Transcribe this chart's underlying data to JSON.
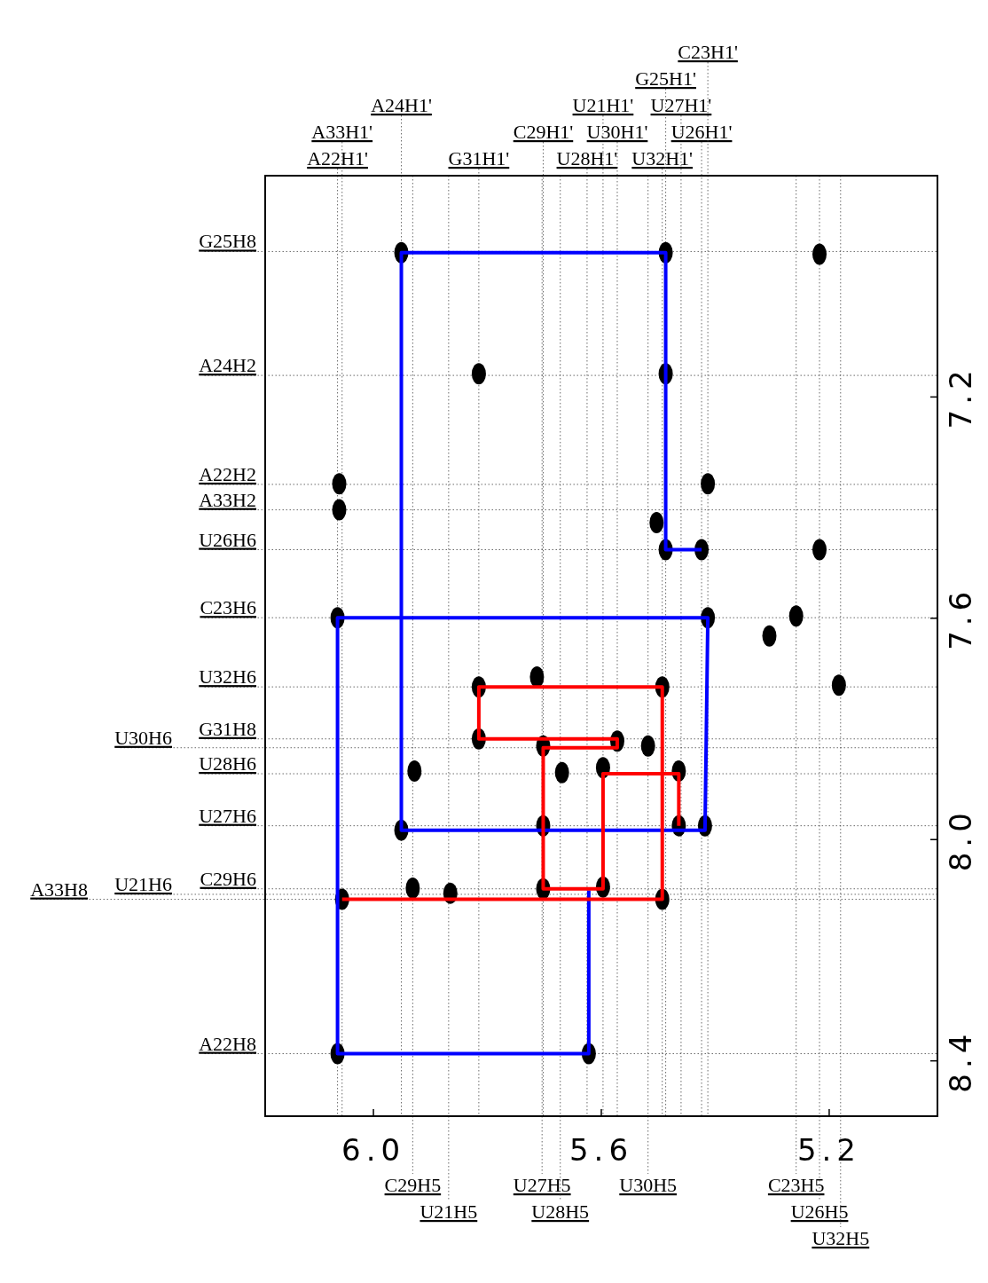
{
  "chart_data": {
    "type": "scatter",
    "xlim": [
      6.19,
      5.01
    ],
    "ylim": [
      8.5,
      6.8
    ],
    "xticks": [
      {
        "value": 6,
        "label": "6.0"
      },
      5.6,
      5.2
    ],
    "yticks": [
      7.2,
      7.6,
      {
        "value": 8,
        "label": "8.0"
      },
      8.4
    ],
    "series": [
      {
        "color": "#000000",
        "marker": "circle",
        "x": [
          5.951,
          5.487,
          5.217,
          5.815,
          5.487,
          6.06,
          5.413,
          6.06,
          5.487,
          5.424,
          5.217,
          6.063,
          5.413,
          5.258,
          5.305,
          5.815,
          5.493,
          5.183,
          5.713,
          5.815,
          5.702,
          5.572,
          5.518,
          5.928,
          5.669,
          5.597,
          5.464,
          5.951,
          5.702,
          5.464,
          5.418,
          5.931,
          5.865,
          5.702,
          5.597,
          6.055,
          5.493,
          6.063,
          5.622,
          5.503
        ],
        "values": [
          6.939,
          6.939,
          6.942,
          7.158,
          7.158,
          7.357,
          7.357,
          7.404,
          7.476,
          7.476,
          7.476,
          7.599,
          7.599,
          7.596,
          7.632,
          7.724,
          7.724,
          7.721,
          7.706,
          7.818,
          7.831,
          7.822,
          7.831,
          7.876,
          7.879,
          7.87,
          7.876,
          7.983,
          7.975,
          7.975,
          7.975,
          8.088,
          8.097,
          8.089,
          8.086,
          8.108,
          8.108,
          8.387,
          8.387,
          7.427
        ]
      },
      {
        "type": "line",
        "color": "#0000ff",
        "x": [
          5.424,
          5.487,
          5.487,
          5.951,
          5.951,
          5.418,
          5.413,
          6.063,
          6.063,
          5.622,
          5.622
        ],
        "values": [
          7.476,
          7.476,
          6.939,
          6.939,
          7.983,
          7.983,
          7.599,
          7.599,
          8.387,
          8.387,
          8.092
        ]
      },
      {
        "type": "line",
        "color": "#ff0000",
        "x": [
          6.055,
          5.493,
          5.493,
          5.815,
          5.815,
          5.572,
          5.572,
          5.702,
          5.702,
          5.597,
          5.597,
          5.464,
          5.464
        ],
        "values": [
          8.108,
          8.108,
          7.724,
          7.724,
          7.818,
          7.818,
          7.834,
          7.834,
          8.089,
          8.089,
          7.881,
          7.881,
          7.975
        ]
      }
    ],
    "ref_lines": [
      {
        "axis": "x",
        "value": 6.063,
        "label": "A22H1'"
      },
      {
        "axis": "x",
        "value": 6.055,
        "label": "A33H1'"
      },
      {
        "axis": "x",
        "value": 5.951,
        "label": "A24H1'"
      },
      {
        "axis": "x",
        "value": 5.815,
        "label": "G31H1'"
      },
      {
        "axis": "x",
        "value": 5.702,
        "label": "C29H1'"
      },
      {
        "axis": "x",
        "value": 5.625,
        "label": "U28H1'"
      },
      {
        "axis": "x",
        "value": 5.597,
        "label": "U21H1'"
      },
      {
        "axis": "x",
        "value": 5.572,
        "label": "U30H1'"
      },
      {
        "axis": "x",
        "value": 5.493,
        "label": "U32H1'"
      },
      {
        "axis": "x",
        "value": 5.487,
        "label": "G25H1'"
      },
      {
        "axis": "x",
        "value": 5.46,
        "label": "U27H1'"
      },
      {
        "axis": "x",
        "value": 5.424,
        "label": "U26H1'"
      },
      {
        "axis": "x",
        "value": 5.413,
        "label": "C23H1'"
      },
      {
        "axis": "x",
        "value": 5.931,
        "label": "C29H5"
      },
      {
        "axis": "x",
        "value": 5.868,
        "label": "U21H5"
      },
      {
        "axis": "x",
        "value": 5.704,
        "label": "U27H5"
      },
      {
        "axis": "x",
        "value": 5.672,
        "label": "U28H5"
      },
      {
        "axis": "x",
        "value": 5.518,
        "label": "U30H5"
      },
      {
        "axis": "x",
        "value": 5.258,
        "label": "C23H5"
      },
      {
        "axis": "x",
        "value": 5.217,
        "label": "U26H5"
      },
      {
        "axis": "x",
        "value": 5.18,
        "label": "U32H5"
      },
      {
        "axis": "y",
        "value": 6.937,
        "label": "G25H8"
      },
      {
        "axis": "y",
        "value": 7.161,
        "label": "A24H2"
      },
      {
        "axis": "y",
        "value": 7.358,
        "label": "A22H2"
      },
      {
        "axis": "y",
        "value": 7.404,
        "label": "A33H2"
      },
      {
        "axis": "y",
        "value": 7.476,
        "label": "U26H6"
      },
      {
        "axis": "y",
        "value": 7.599,
        "label": "C23H6"
      },
      {
        "axis": "y",
        "value": 7.724,
        "label": "U32H6"
      },
      {
        "axis": "y",
        "value": 7.818,
        "label": "G31H8"
      },
      {
        "axis": "y",
        "value": 7.834,
        "label": "U30H6"
      },
      {
        "axis": "y",
        "value": 7.881,
        "label": "U28H6"
      },
      {
        "axis": "y",
        "value": 7.975,
        "label": "U27H6"
      },
      {
        "axis": "y",
        "value": 8.089,
        "label": "C29H6"
      },
      {
        "axis": "y",
        "value": 8.099,
        "label": "U21H6"
      },
      {
        "axis": "y",
        "value": 8.108,
        "label": "A33H8"
      },
      {
        "axis": "y",
        "value": 8.387,
        "label": "A22H8"
      }
    ]
  }
}
